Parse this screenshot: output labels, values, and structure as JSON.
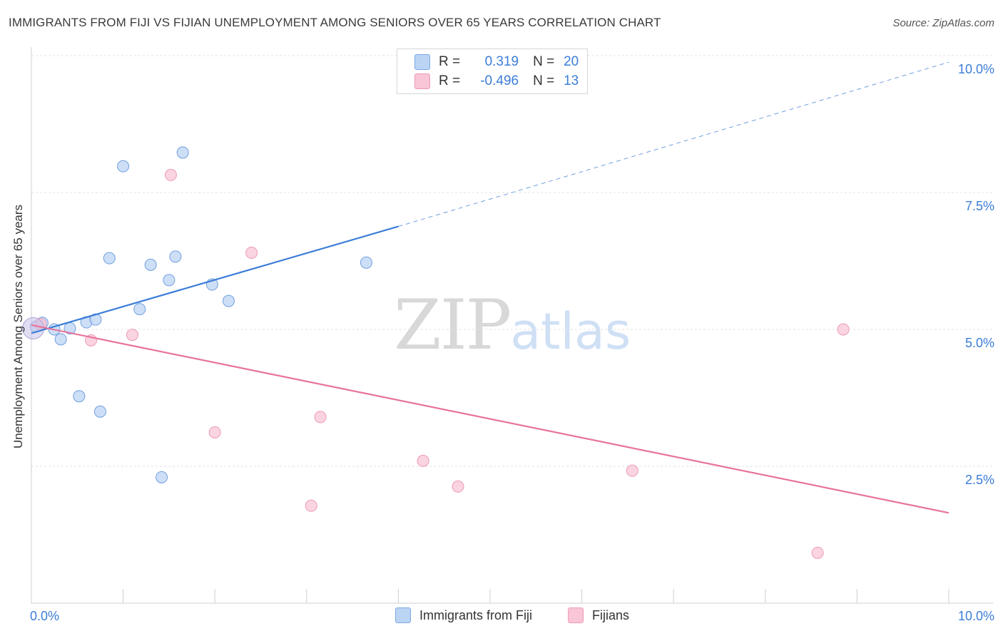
{
  "title": "IMMIGRANTS FROM FIJI VS FIJIAN UNEMPLOYMENT AMONG SENIORS OVER 65 YEARS CORRELATION CHART",
  "source": "Source: ZipAtlas.com",
  "colors": {
    "blue": "#3b7dd8",
    "blue_fill": "#bcd4f4",
    "pink": "#e8739a",
    "pink_fill": "#f8c6d6"
  },
  "legend": {
    "r_label": "R =",
    "n_label": "N =",
    "blue": {
      "r": "0.319",
      "n": "20"
    },
    "pink": {
      "r": "-0.496",
      "n": "13"
    }
  },
  "bottom_legend": {
    "blue": "Immigrants from Fiji",
    "pink": "Fijians"
  },
  "watermark": {
    "zip": "ZIP",
    "atlas": "atlas"
  },
  "chart_data": {
    "type": "scatter",
    "xlabel": "",
    "ylabel": "Unemployment Among Seniors over 65 years",
    "xlim": [
      0,
      10
    ],
    "ylim": [
      0,
      10
    ],
    "x_tick_labels": [
      {
        "value": 0,
        "label": "0.0%"
      },
      {
        "value": 10,
        "label": "10.0%"
      }
    ],
    "y_ticks": [
      {
        "value": 2.5,
        "label": "2.5%"
      },
      {
        "value": 5.0,
        "label": "5.0%"
      },
      {
        "value": 7.5,
        "label": "7.5%"
      },
      {
        "value": 10.0,
        "label": "10.0%"
      }
    ],
    "series": [
      {
        "name": "Immigrants from Fiji",
        "r": 0.319,
        "n": 20,
        "points": [
          [
            0.05,
            5.05
          ],
          [
            0.12,
            5.12
          ],
          [
            0.25,
            5.0
          ],
          [
            0.32,
            4.82
          ],
          [
            0.42,
            5.02
          ],
          [
            0.52,
            3.78
          ],
          [
            0.6,
            5.13
          ],
          [
            0.7,
            5.18
          ],
          [
            0.75,
            3.5
          ],
          [
            0.85,
            6.3
          ],
          [
            1.0,
            7.98
          ],
          [
            1.18,
            5.37
          ],
          [
            1.3,
            6.18
          ],
          [
            1.42,
            2.3
          ],
          [
            1.5,
            5.9
          ],
          [
            1.57,
            6.33
          ],
          [
            1.65,
            8.23
          ],
          [
            1.97,
            5.82
          ],
          [
            2.15,
            5.52
          ],
          [
            3.65,
            6.22
          ]
        ],
        "trend": {
          "x0": 0.0,
          "y0": 4.93,
          "x1": 4.0,
          "y1": 6.88,
          "dash_x1": 10.0,
          "dash_y1": 9.88
        }
      },
      {
        "name": "Fijians",
        "r": -0.496,
        "n": 13,
        "points": [
          [
            0.1,
            5.1
          ],
          [
            0.65,
            4.8
          ],
          [
            1.1,
            4.9
          ],
          [
            1.52,
            7.82
          ],
          [
            2.0,
            3.12
          ],
          [
            2.4,
            6.4
          ],
          [
            3.05,
            1.78
          ],
          [
            3.15,
            3.4
          ],
          [
            4.27,
            2.6
          ],
          [
            4.65,
            2.13
          ],
          [
            6.55,
            2.42
          ],
          [
            8.57,
            0.92
          ],
          [
            8.85,
            5.0
          ]
        ],
        "trend": {
          "x0": 0.0,
          "y0": 5.08,
          "x1": 10.0,
          "y1": 1.65
        }
      }
    ]
  }
}
